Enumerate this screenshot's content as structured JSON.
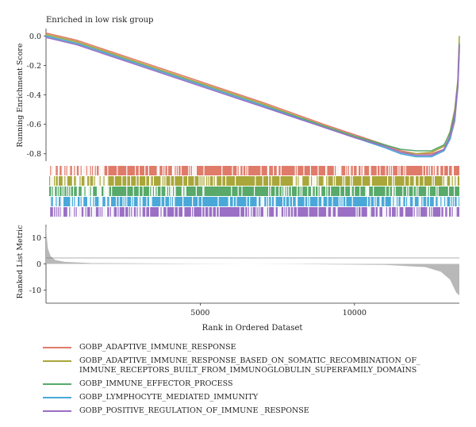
{
  "chart_data": {
    "type": "line",
    "title": "Enriched in low risk group",
    "x_label": "Rank in Ordered Dataset",
    "x_ticks": [
      5000,
      10000
    ],
    "x_range": [
      0,
      13400
    ],
    "top_panel": {
      "y_label": "Running Enrichment Score",
      "y_ticks": [
        "0.0",
        "-0.2",
        "-0.4",
        "-0.6",
        "-0.8"
      ],
      "y_range": [
        -0.85,
        0.05
      ]
    },
    "bottom_panel": {
      "y_label": "Ranked List Metric",
      "y_ticks": [
        "10",
        "0",
        "-10"
      ],
      "y_range": [
        -15,
        15
      ],
      "ranked_metric": [
        {
          "x": 0,
          "y": 15
        },
        {
          "x": 20,
          "y": 11
        },
        {
          "x": 60,
          "y": 6
        },
        {
          "x": 150,
          "y": 3
        },
        {
          "x": 300,
          "y": 1.5
        },
        {
          "x": 600,
          "y": 0.8
        },
        {
          "x": 1500,
          "y": 0.3
        },
        {
          "x": 5000,
          "y": 0.1
        },
        {
          "x": 8000,
          "y": -0.1
        },
        {
          "x": 11000,
          "y": -0.4
        },
        {
          "x": 12300,
          "y": -1.2
        },
        {
          "x": 12800,
          "y": -3
        },
        {
          "x": 13100,
          "y": -6
        },
        {
          "x": 13300,
          "y": -11
        },
        {
          "x": 13400,
          "y": -12
        }
      ]
    },
    "series": [
      {
        "name": "GOBP_ADAPTIVE_IMMUNE_RESPONSE",
        "color": "#e07b6a",
        "x": [
          0,
          1000,
          3000,
          5000,
          7000,
          9000,
          10000,
          11000,
          11500,
          12000,
          12500,
          12900,
          13100,
          13250,
          13350,
          13400
        ],
        "y": [
          0.02,
          -0.03,
          -0.17,
          -0.31,
          -0.45,
          -0.6,
          -0.67,
          -0.74,
          -0.78,
          -0.8,
          -0.8,
          -0.77,
          -0.7,
          -0.58,
          -0.35,
          -0.1
        ]
      },
      {
        "name": "GOBP_ADAPTIVE_IMMUNE_RESPONSE_BASED_ON_SOMATIC_RECOMBINATION_OF_IMMUNE_RECEPTORS_BUILT_FROM_IMMUNOGLOBULIN_SUPERFAMILY_DOMAINS",
        "color": "#a9a63a",
        "x": [
          0,
          1000,
          3000,
          5000,
          7000,
          9000,
          10000,
          11000,
          11500,
          12000,
          12500,
          12900,
          13100,
          13250,
          13350,
          13400
        ],
        "y": [
          0.01,
          -0.04,
          -0.18,
          -0.32,
          -0.46,
          -0.61,
          -0.68,
          -0.75,
          -0.79,
          -0.8,
          -0.79,
          -0.75,
          -0.65,
          -0.5,
          -0.3,
          0.0
        ]
      },
      {
        "name": "GOBP_IMMUNE_EFFECTOR_PROCESS",
        "color": "#58a96a",
        "x": [
          0,
          1000,
          3000,
          5000,
          7000,
          9000,
          10000,
          11000,
          11500,
          12000,
          12500,
          12900,
          13100,
          13250,
          13350,
          13400
        ],
        "y": [
          0.0,
          -0.05,
          -0.19,
          -0.33,
          -0.47,
          -0.61,
          -0.68,
          -0.74,
          -0.77,
          -0.78,
          -0.78,
          -0.74,
          -0.66,
          -0.52,
          -0.32,
          -0.05
        ]
      },
      {
        "name": "GOBP_LYMPHOCYTE_MEDIATED_IMMUNITY",
        "color": "#4aa8d8",
        "x": [
          0,
          1000,
          3000,
          5000,
          7000,
          9000,
          10000,
          11000,
          11500,
          12000,
          12500,
          12900,
          13100,
          13250,
          13350,
          13400
        ],
        "y": [
          0.0,
          -0.05,
          -0.19,
          -0.33,
          -0.47,
          -0.62,
          -0.69,
          -0.76,
          -0.8,
          -0.82,
          -0.82,
          -0.78,
          -0.7,
          -0.56,
          -0.34,
          -0.08
        ]
      },
      {
        "name": "GOBP_POSITIVE_REGULATION_OF_IMMUNE _RESPONSE",
        "color": "#9a6fc4",
        "x": [
          0,
          1000,
          3000,
          5000,
          7000,
          9000,
          10000,
          11000,
          11500,
          12000,
          12500,
          12900,
          13100,
          13250,
          13350,
          13400
        ],
        "y": [
          -0.01,
          -0.06,
          -0.2,
          -0.34,
          -0.48,
          -0.62,
          -0.69,
          -0.75,
          -0.79,
          -0.81,
          -0.81,
          -0.77,
          -0.68,
          -0.54,
          -0.33,
          -0.06
        ]
      }
    ]
  },
  "legend": [
    {
      "label_lines": [
        "GOBP_ADAPTIVE_IMMUNE_RESPONSE"
      ],
      "color": "#e07b6a"
    },
    {
      "label_lines": [
        "GOBP_ADAPTIVE_IMMUNE_RESPONSE_BASED_ON_SOMATIC_RECOMBINATION_OF_",
        "IMMUNE_RECEPTORS_BUILT_FROM_IMMUNOGLOBULIN_SUPERFAMILY_DOMAINS"
      ],
      "color": "#a9a63a"
    },
    {
      "label_lines": [
        "GOBP_IMMUNE_EFFECTOR_PROCESS"
      ],
      "color": "#58a96a"
    },
    {
      "label_lines": [
        "GOBP_LYMPHOCYTE_MEDIATED_IMMUNITY"
      ],
      "color": "#4aa8d8"
    },
    {
      "label_lines": [
        "GOBP_POSITIVE_REGULATION_OF_IMMUNE _RESPONSE"
      ],
      "color": "#9a6fc4"
    }
  ]
}
